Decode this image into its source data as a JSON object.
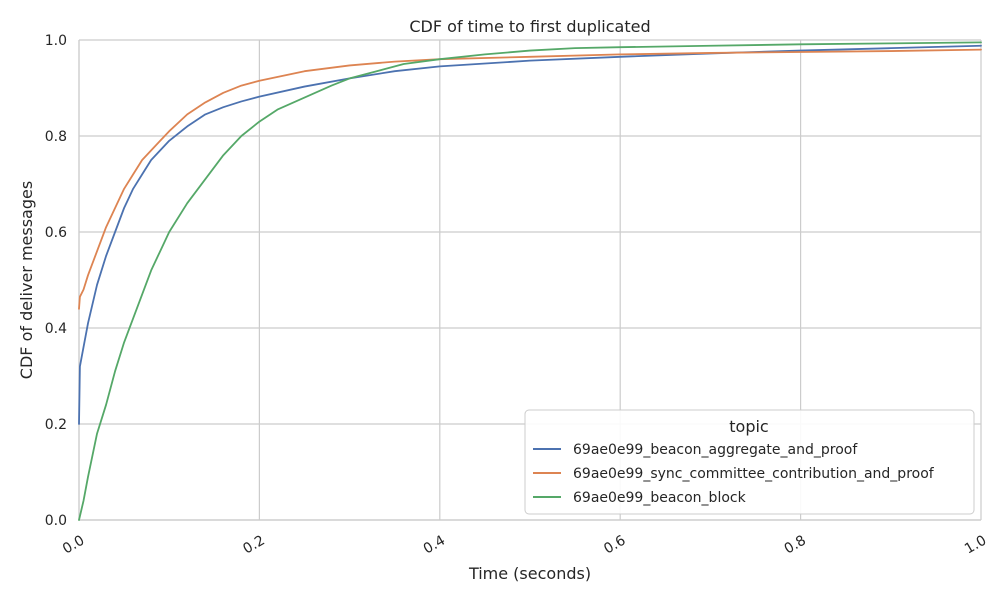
{
  "chart_data": {
    "type": "line",
    "title": "CDF of time to first duplicated",
    "xlabel": "Time (seconds)",
    "ylabel": "CDF of deliver messages",
    "xlim": [
      0,
      1
    ],
    "ylim": [
      0,
      1
    ],
    "x_ticks": [
      "0.0",
      "0.2",
      "0.4",
      "0.6",
      "0.8",
      "1.0"
    ],
    "y_ticks": [
      "0.0",
      "0.2",
      "0.4",
      "0.6",
      "0.8",
      "1.0"
    ],
    "grid": true,
    "legend": {
      "title": "topic",
      "placement": "lower-right"
    },
    "series": [
      {
        "name": "69ae0e99_beacon_aggregate_and_proof",
        "color": "#4c72b0",
        "x": [
          0,
          0.001,
          0.005,
          0.01,
          0.02,
          0.03,
          0.04,
          0.05,
          0.06,
          0.07,
          0.08,
          0.09,
          0.1,
          0.12,
          0.14,
          0.16,
          0.18,
          0.2,
          0.25,
          0.3,
          0.35,
          0.4,
          0.5,
          0.6,
          0.7,
          0.8,
          0.9,
          1.0
        ],
        "y": [
          0.2,
          0.32,
          0.36,
          0.41,
          0.49,
          0.55,
          0.6,
          0.65,
          0.69,
          0.72,
          0.75,
          0.77,
          0.79,
          0.82,
          0.845,
          0.86,
          0.872,
          0.882,
          0.903,
          0.92,
          0.935,
          0.945,
          0.957,
          0.965,
          0.972,
          0.978,
          0.983,
          0.988
        ]
      },
      {
        "name": "69ae0e99_sync_committee_contribution_and_proof",
        "color": "#dd8452",
        "x": [
          0,
          0.001,
          0.005,
          0.01,
          0.02,
          0.03,
          0.04,
          0.05,
          0.06,
          0.07,
          0.08,
          0.09,
          0.1,
          0.12,
          0.14,
          0.16,
          0.18,
          0.2,
          0.25,
          0.3,
          0.35,
          0.4,
          0.5,
          0.6,
          0.7,
          0.8,
          0.9,
          1.0
        ],
        "y": [
          0.44,
          0.465,
          0.48,
          0.51,
          0.56,
          0.61,
          0.65,
          0.69,
          0.72,
          0.75,
          0.77,
          0.79,
          0.81,
          0.845,
          0.87,
          0.89,
          0.905,
          0.915,
          0.935,
          0.947,
          0.955,
          0.96,
          0.965,
          0.97,
          0.973,
          0.975,
          0.977,
          0.98
        ]
      },
      {
        "name": "69ae0e99_beacon_block",
        "color": "#55a868",
        "x": [
          0,
          0.005,
          0.01,
          0.02,
          0.03,
          0.04,
          0.05,
          0.06,
          0.07,
          0.08,
          0.09,
          0.1,
          0.12,
          0.14,
          0.16,
          0.18,
          0.2,
          0.22,
          0.25,
          0.28,
          0.3,
          0.33,
          0.36,
          0.4,
          0.45,
          0.5,
          0.55,
          0.6,
          0.7,
          0.8,
          0.9,
          1.0
        ],
        "y": [
          0.0,
          0.04,
          0.09,
          0.18,
          0.24,
          0.31,
          0.37,
          0.42,
          0.47,
          0.52,
          0.56,
          0.6,
          0.66,
          0.71,
          0.76,
          0.8,
          0.83,
          0.855,
          0.88,
          0.905,
          0.92,
          0.935,
          0.95,
          0.96,
          0.97,
          0.978,
          0.983,
          0.985,
          0.988,
          0.991,
          0.993,
          0.995
        ]
      }
    ]
  }
}
